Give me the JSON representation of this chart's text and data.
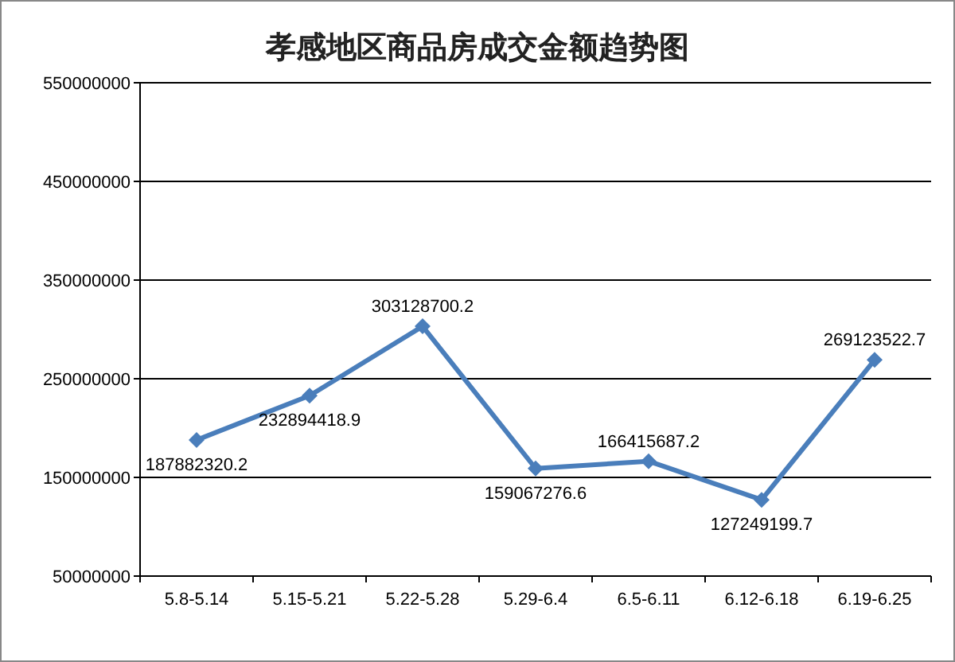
{
  "chart_data": {
    "type": "line",
    "title": "孝感地区商品房成交金额趋势图",
    "categories": [
      "5.8-5.14",
      "5.15-5.21",
      "5.22-5.28",
      "5.29-6.4",
      "6.5-6.11",
      "6.12-6.18",
      "6.19-6.25"
    ],
    "series": [
      {
        "color": "#4a7ebb",
        "values": [
          187882320.2,
          232894418.9,
          303128700.2,
          159067276.6,
          166415687.2,
          127249199.7,
          269123522.7
        ]
      }
    ],
    "ylim": [
      50000000,
      550000000
    ],
    "yticks": [
      50000000,
      150000000,
      250000000,
      350000000,
      450000000,
      550000000
    ],
    "grid": "y",
    "marker": "diamond",
    "data_labels": true
  }
}
